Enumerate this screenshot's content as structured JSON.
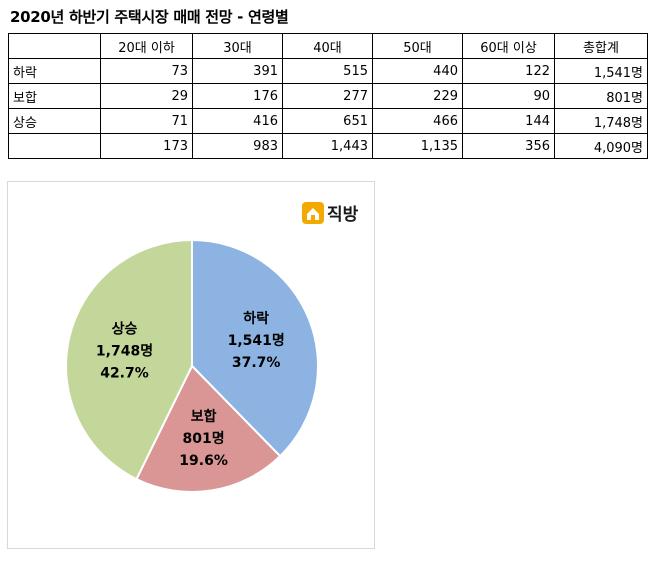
{
  "title": "2020년 하반기 주택시장 매매 전망 - 연령별",
  "table": {
    "columns": [
      "",
      "20대 이하",
      "30대",
      "40대",
      "50대",
      "60대 이상",
      "총합계"
    ],
    "rows": [
      {
        "label": "하락",
        "values": [
          "73",
          "391",
          "515",
          "440",
          "122",
          "1,541명"
        ]
      },
      {
        "label": "보합",
        "values": [
          "29",
          "176",
          "277",
          "229",
          "90",
          "801명"
        ]
      },
      {
        "label": "상승",
        "values": [
          "71",
          "416",
          "651",
          "466",
          "144",
          "1,748명"
        ]
      },
      {
        "label": "",
        "values": [
          "173",
          "983",
          "1,443",
          "1,135",
          "356",
          "4,090명"
        ]
      }
    ]
  },
  "logo": {
    "text": "직방",
    "icon": "house-icon",
    "color": "#f2a900"
  },
  "chart_data": {
    "type": "pie",
    "slices": [
      {
        "name": "하락",
        "value": 1541,
        "value_label": "1,541명",
        "percent_label": "37.7%",
        "color": "#8db3e2"
      },
      {
        "name": "보합",
        "value": 801,
        "value_label": "801명",
        "percent_label": "19.6%",
        "color": "#d99694"
      },
      {
        "name": "상승",
        "value": 1748,
        "value_label": "1,748명",
        "percent_label": "42.7%",
        "color": "#c4d79b"
      }
    ],
    "start_angle_deg": 0,
    "direction": "clockwise"
  }
}
